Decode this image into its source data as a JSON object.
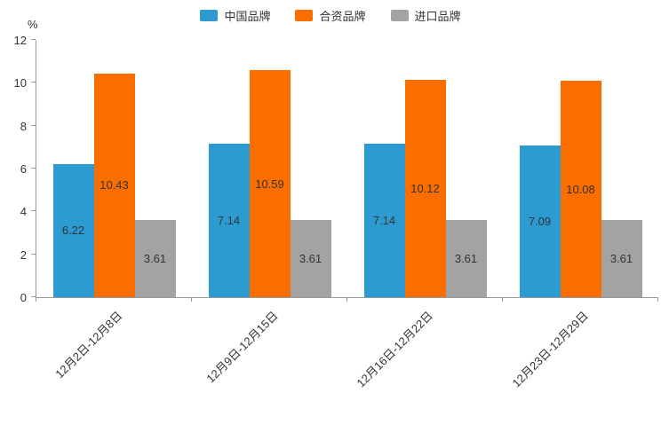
{
  "chart_data": {
    "type": "bar",
    "title": "",
    "xlabel": "",
    "ylabel": "%",
    "ylim": [
      0,
      12
    ],
    "y_ticks": [
      0,
      2,
      4,
      6,
      8,
      10,
      12
    ],
    "grid": false,
    "legend_position": "top",
    "categories": [
      "12月2日-12月8日",
      "12月9日-12月15日",
      "12月16日-12月22日",
      "12月23日-12月29日"
    ],
    "series": [
      {
        "name": "中国品牌",
        "color": "#2b9bd2",
        "values": [
          6.22,
          7.14,
          7.14,
          7.09
        ]
      },
      {
        "name": "合资品牌",
        "color": "#fa6e00",
        "values": [
          10.43,
          10.59,
          10.12,
          10.08
        ]
      },
      {
        "name": "进口品牌",
        "color": "#a3a3a3",
        "values": [
          3.61,
          3.61,
          3.61,
          3.61
        ]
      }
    ],
    "axis_color": "#999999",
    "label_color": "#333333"
  }
}
